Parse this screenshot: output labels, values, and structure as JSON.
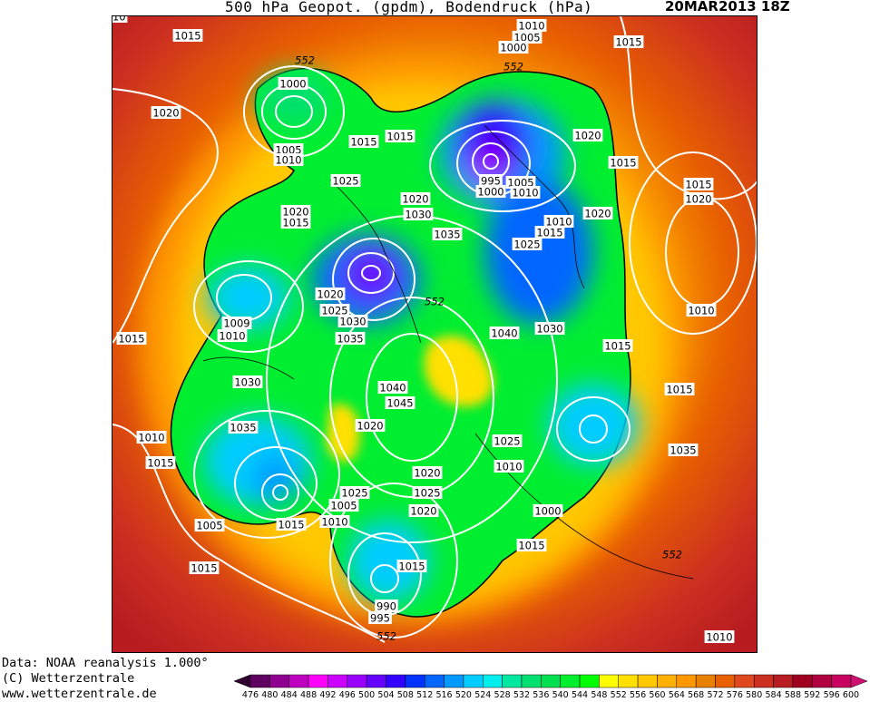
{
  "header": {
    "title": "500 hPa Geopot. (gpdm), Bodendruck (hPa)",
    "date": "20MAR2013 18Z"
  },
  "credits": {
    "line1": "Data: NOAA reanalysis 1.000°",
    "line2": "(C) Wetterzentrale",
    "line3": "www.wetterzentrale.de"
  },
  "map": {
    "isobar_labels": [
      "1015",
      "1010",
      "1005",
      "1000",
      "1015",
      "552",
      "552",
      "1000",
      "1020",
      "1020",
      "1005",
      "1010",
      "1015",
      "1015",
      "1015",
      "1025",
      "995",
      "1005",
      "1000",
      "1010",
      "1020",
      "1015",
      "1020",
      "1020",
      "1015",
      "1030",
      "1010",
      "1020",
      "1015",
      "1035",
      "1025",
      "1020",
      "1025",
      "1030",
      "1009",
      "1010",
      "1015",
      "552",
      "1040",
      "1030",
      "1010",
      "1035",
      "1015",
      "1030",
      "1040",
      "1045",
      "1015",
      "1020",
      "1035",
      "1010",
      "1025",
      "1035",
      "1015",
      "1020",
      "1010",
      "1025",
      "1025",
      "1005",
      "1020",
      "1000",
      "1010",
      "1015",
      "1005",
      "1015",
      "552",
      "1015",
      "1015",
      "990",
      "995",
      "552",
      "1010",
      "1010"
    ]
  },
  "legend": {
    "ticks": [
      "476",
      "480",
      "484",
      "488",
      "492",
      "496",
      "500",
      "504",
      "508",
      "512",
      "516",
      "520",
      "524",
      "528",
      "532",
      "536",
      "540",
      "544",
      "548",
      "552",
      "556",
      "560",
      "564",
      "568",
      "572",
      "576",
      "580",
      "584",
      "588",
      "592",
      "596",
      "600"
    ],
    "colors": [
      "#600060",
      "#900090",
      "#c000c0",
      "#ff00ff",
      "#cc00ff",
      "#9900ff",
      "#6600ff",
      "#3300ff",
      "#0033ff",
      "#0066ff",
      "#0099ff",
      "#00ccff",
      "#00eeee",
      "#00e8a0",
      "#00e070",
      "#00e050",
      "#00ee30",
      "#00ff00",
      "#ffff00",
      "#ffe000",
      "#ffc800",
      "#ffb000",
      "#ff9800",
      "#e88000",
      "#e86000",
      "#e04820",
      "#cc3020",
      "#b81c20",
      "#a00020",
      "#b00040",
      "#c80060"
    ],
    "under_color": "#300030",
    "over_color": "#d01070"
  }
}
